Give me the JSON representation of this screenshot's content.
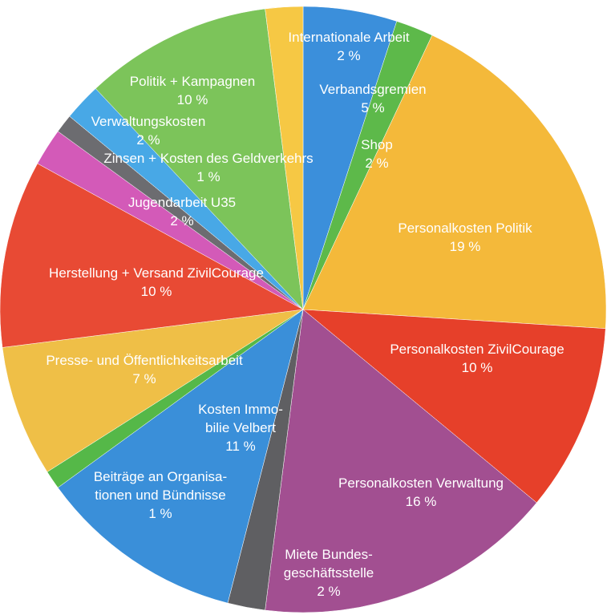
{
  "chart_data": {
    "type": "pie",
    "categories": [
      "Verbandsgremien",
      "Shop",
      "Personalkosten Politik",
      "Personalkosten ZivilCourage",
      "Personalkosten Verwaltung",
      "Miete Bundes-\ngeschäftsstelle",
      "Kosten Immo-\nbilie Velbert",
      "Beiträge an Organisa-\ntionen und Bündnisse",
      "Presse- und Öffentlichkeitsarbeit",
      "Herstellung + Versand ZivilCourage",
      "Jugendarbeit U35",
      "Zinsen + Kosten des Geldverkehrs",
      "Verwaltungskosten",
      "Politik + Kampagnen",
      "Internationale Arbeit"
    ],
    "values": [
      5,
      2,
      19,
      10,
      16,
      2,
      11,
      1,
      7,
      10,
      2,
      1,
      2,
      10,
      2
    ],
    "value_labels": [
      "5 %",
      "2 %",
      "19 %",
      "10 %",
      "16 %",
      "2 %",
      "11 %",
      "1 %",
      "7 %",
      "10 %",
      "2 %",
      "1 %",
      "2 %",
      "10 %",
      "2 %"
    ],
    "colors": [
      "#3b8fdb",
      "#5db94a",
      "#f4b93a",
      "#e6402a",
      "#a24f91",
      "#5f5f62",
      "#3a8fd9",
      "#55b848",
      "#efbf47",
      "#e84a34",
      "#d35ab8",
      "#6c6c70",
      "#48a8e6",
      "#7cc45a",
      "#f6c844"
    ]
  }
}
